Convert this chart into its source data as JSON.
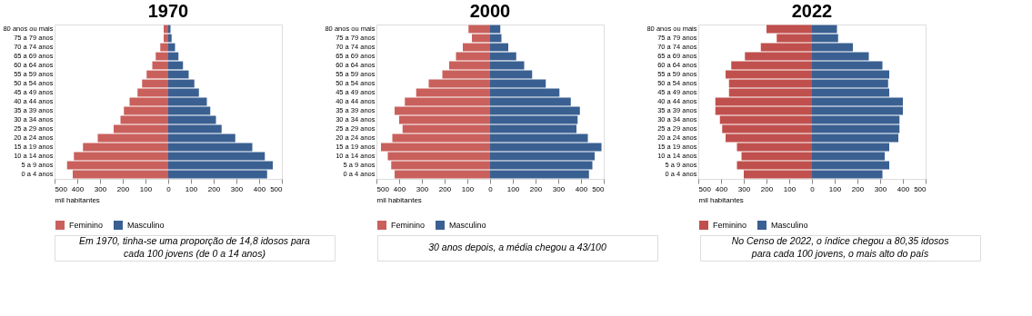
{
  "chart_data": [
    {
      "type": "bar",
      "orientation": "horizontal",
      "stacked": true,
      "title": "1970",
      "xlabel": "mil habitantes",
      "legend": "bottom",
      "grid": false,
      "categories": [
        "80 anos ou mais",
        "75 a 79 anos",
        "70 a 74 anos",
        "65 a 69 anos",
        "60 a 64 anos",
        "55 a 59 anos",
        "50 a 54 anos",
        "45 a 49 anos",
        "40 a 44 anos",
        "35 a 39 anos",
        "30 a 34 anos",
        "25 a 29 anos",
        "20 a 24 anos",
        "15 a 19 anos",
        "10 a 14 anos",
        "5 a 9 anos",
        "0 a 4 anos"
      ],
      "series": [
        {
          "name": "Feminino",
          "color": "#c9605c",
          "values": [
            -20,
            -20,
            -35,
            -55,
            -70,
            -95,
            -115,
            -135,
            -170,
            -195,
            -210,
            -240,
            -310,
            -375,
            -415,
            -445,
            -420
          ]
        },
        {
          "name": "Masculino",
          "color": "#3a6092",
          "values": [
            10,
            15,
            30,
            45,
            65,
            90,
            115,
            135,
            170,
            185,
            210,
            235,
            295,
            370,
            425,
            460,
            435
          ]
        }
      ],
      "xlim": [
        -500,
        500
      ],
      "xticks": [
        {
          "value": -500,
          "label": "500"
        },
        {
          "value": -400,
          "label": "400"
        },
        {
          "value": -300,
          "label": "300"
        },
        {
          "value": -200,
          "label": "200"
        },
        {
          "value": -100,
          "label": "100"
        },
        0,
        100,
        200,
        300,
        400,
        500
      ],
      "annotations": [
        "Em 1970, tinha-se uma proporção de 14,8 idosos para cada 100 jovens (de 0 a 14 anos)"
      ]
    },
    {
      "type": "bar",
      "orientation": "horizontal",
      "stacked": true,
      "title": "2000",
      "xlabel": "mil habitantes",
      "legend": "bottom",
      "grid": false,
      "categories": [
        "80 anos ou mais",
        "75 a 79 anos",
        "70 a 74 anos",
        "65 a 69 anos",
        "60 a 64 anos",
        "55 a 59 anos",
        "50 a 54 anos",
        "45 a 49 anos",
        "40 a 44 anos",
        "35 a 39 anos",
        "30 a 34 anos",
        "25 a 29 anos",
        "20 a 24 anos",
        "15 a 19 anos",
        "10 a 14 anos",
        "5 a 9 anos",
        "0 a 4 anos"
      ],
      "series": [
        {
          "name": "Feminino",
          "color": "#c9605c",
          "values": [
            -95,
            -80,
            -120,
            -150,
            -180,
            -210,
            -270,
            -325,
            -375,
            -420,
            -400,
            -385,
            -430,
            -480,
            -450,
            -435,
            -420
          ]
        },
        {
          "name": "Masculino",
          "color": "#3a6092",
          "values": [
            45,
            50,
            80,
            115,
            150,
            185,
            245,
            305,
            355,
            395,
            385,
            380,
            430,
            490,
            460,
            450,
            435
          ]
        }
      ],
      "xlim": [
        -500,
        500
      ],
      "xticks": [
        {
          "value": -500,
          "label": "500"
        },
        {
          "value": -400,
          "label": "400"
        },
        {
          "value": -300,
          "label": "300"
        },
        {
          "value": -200,
          "label": "200"
        },
        {
          "value": -100,
          "label": "100"
        },
        0,
        100,
        200,
        300,
        400,
        500
      ],
      "annotations": [
        "30 anos depois, a média chegou a 43/100"
      ]
    },
    {
      "type": "bar",
      "orientation": "horizontal",
      "stacked": true,
      "title": "2022",
      "xlabel": "mil habitantes",
      "legend": "bottom",
      "grid": false,
      "categories": [
        "80 anos ou mais",
        "75 a 79 anos",
        "70 a 74 anos",
        "65 a 69 anos",
        "60 a 64 anos",
        "55 a 59 anos",
        "50 a 54 anos",
        "45 a 49 anos",
        "40 a 44 anos",
        "35 a 39 anos",
        "30 a 34 anos",
        "25 a 29 anos",
        "20 a 24 anos",
        "15 a 19 anos",
        "10 a 14 anos",
        "5 a 9 anos",
        "0 a 4 anos"
      ],
      "series": [
        {
          "name": "Feminino",
          "color": "#c0504d",
          "values": [
            -200,
            -155,
            -225,
            -295,
            -355,
            -380,
            -365,
            -365,
            -425,
            -425,
            -405,
            -395,
            -380,
            -330,
            -310,
            -330,
            -300
          ]
        },
        {
          "name": "Masculino",
          "color": "#3a6092",
          "values": [
            110,
            115,
            180,
            250,
            310,
            340,
            335,
            340,
            400,
            400,
            385,
            385,
            380,
            340,
            320,
            340,
            310
          ]
        }
      ],
      "xlim": [
        -500,
        500
      ],
      "xticks": [
        {
          "value": -500,
          "label": "500"
        },
        {
          "value": -400,
          "label": "400"
        },
        {
          "value": -300,
          "label": "300"
        },
        {
          "value": -200,
          "label": "200"
        },
        {
          "value": -100,
          "label": "100"
        },
        0,
        100,
        200,
        300,
        400,
        500
      ],
      "annotations": [
        "No Censo de 2022, o índice chegou a 80,35 idosos para cada 100 jovens, o mais alto do país"
      ]
    }
  ]
}
